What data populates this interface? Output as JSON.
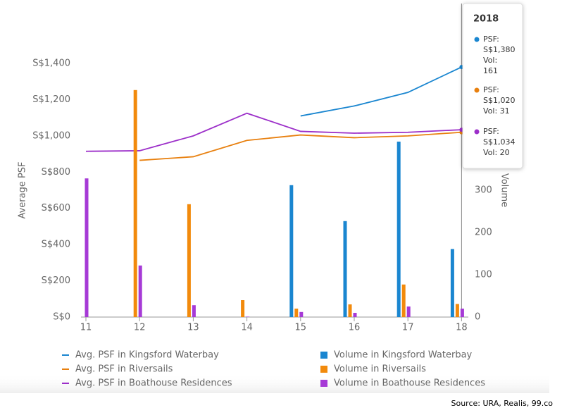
{
  "chart_data": {
    "type": "bar-line",
    "y_label": "Average PSF",
    "y2_label": "Volume",
    "categories": [
      "11",
      "12",
      "13",
      "14",
      "15",
      "16",
      "17",
      "18"
    ],
    "ylim": [
      0,
      1400
    ],
    "yticks": [
      {
        "value": 0,
        "label": "S$0"
      },
      {
        "value": 200,
        "label": "S$200"
      },
      {
        "value": 400,
        "label": "S$400"
      },
      {
        "value": 600,
        "label": "S$600"
      },
      {
        "value": 800,
        "label": "S$800"
      },
      {
        "value": 1000,
        "label": "S$1,000"
      },
      {
        "value": 1200,
        "label": "S$1,200"
      },
      {
        "value": 1400,
        "label": "S$1,400"
      }
    ],
    "y2lim": [
      0,
      600
    ],
    "y2ticks": [
      0,
      100,
      200,
      300
    ],
    "series": [
      {
        "name": "Avg. PSF in Kingsford Waterbay",
        "kind": "line",
        "color": "#1a86d0",
        "values": [
          null,
          null,
          null,
          null,
          1110,
          1165,
          1240,
          1380
        ]
      },
      {
        "name": "Avg. PSF in Riversails",
        "kind": "line",
        "color": "#e8800f",
        "values": [
          null,
          865,
          885,
          975,
          1005,
          990,
          1000,
          1020
        ]
      },
      {
        "name": "Avg. PSF in Boathouse Residences",
        "kind": "line",
        "color": "#9c2fc9",
        "values": [
          915,
          918,
          1000,
          1125,
          1025,
          1015,
          1020,
          1034
        ]
      },
      {
        "name": "Volume in Kingsford Waterbay",
        "kind": "bar",
        "axis": "y2",
        "color": "#1a86d0",
        "values": [
          null,
          null,
          null,
          null,
          312,
          227,
          415,
          161
        ]
      },
      {
        "name": "Volume in Riversails",
        "kind": "bar",
        "axis": "y2",
        "color": "#f28a0c",
        "values": [
          null,
          537,
          267,
          40,
          20,
          30,
          77,
          31
        ]
      },
      {
        "name": "Volume in Boathouse Residences",
        "kind": "bar",
        "axis": "y2",
        "color": "#a63ad6",
        "values": [
          328,
          122,
          28,
          1,
          12,
          10,
          25,
          20
        ]
      }
    ],
    "tooltip": {
      "title": "2018",
      "items": [
        [
          "PSF:",
          "S$1,380",
          "Vol:",
          "161"
        ],
        [
          "PSF:",
          "S$1,020",
          "Vol: 31"
        ],
        [
          "PSF:",
          "S$1,034",
          "Vol: 20"
        ]
      ]
    },
    "source": "Source: URA, Realis, 99.co"
  }
}
